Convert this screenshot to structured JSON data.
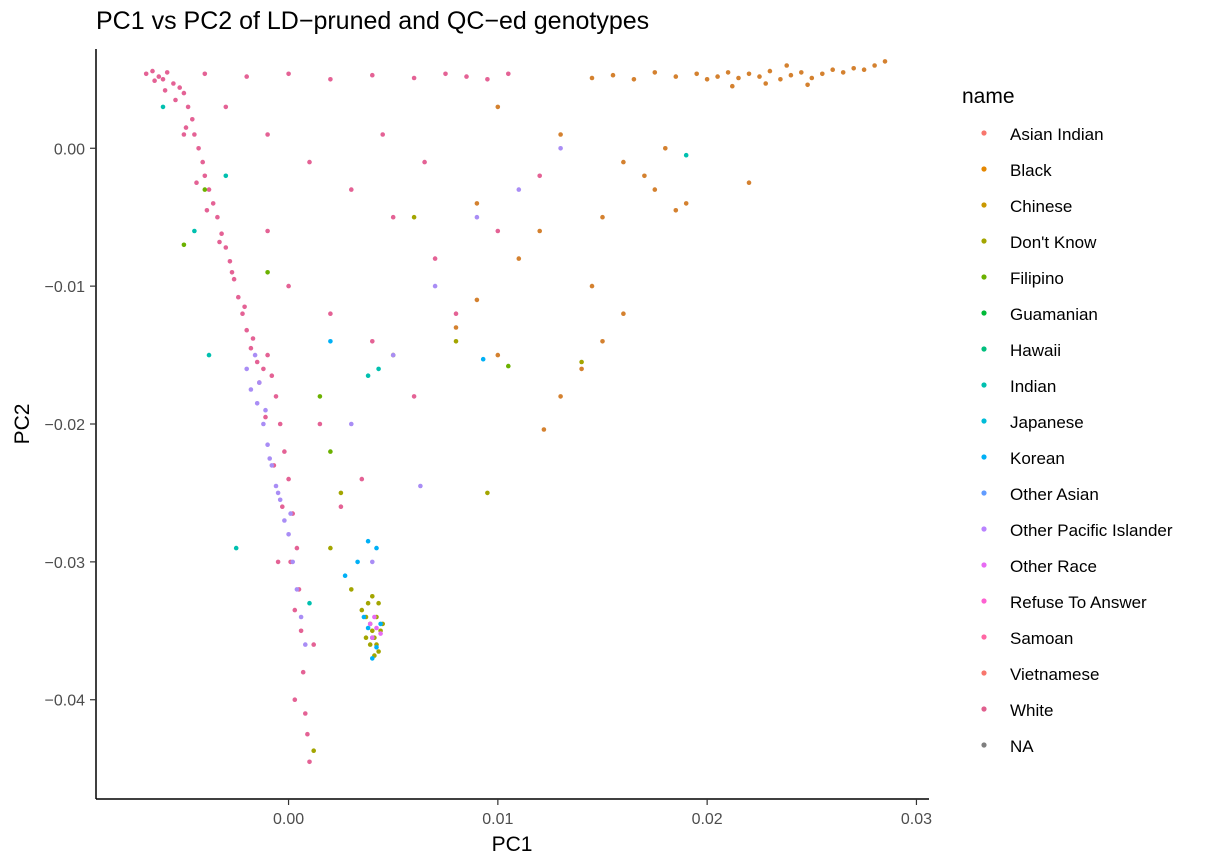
{
  "chart_data": {
    "type": "scatter",
    "title": "PC1 vs PC2 of LD−pruned and QC−ed genotypes",
    "xlabel": "PC1",
    "ylabel": "PC2",
    "xlim": [
      -0.0092,
      0.0306
    ],
    "ylim": [
      -0.0472,
      0.0072
    ],
    "x_ticks": [
      0.0,
      0.01,
      0.02,
      0.03
    ],
    "x_tick_labels": [
      "0.00",
      "0.01",
      "0.02",
      "0.03"
    ],
    "y_ticks": [
      0.0,
      -0.01,
      -0.02,
      -0.03,
      -0.04
    ],
    "y_tick_labels": [
      "0.00",
      "−0.01",
      "−0.02",
      "−0.03",
      "−0.04"
    ],
    "grid": false,
    "legend": {
      "title": "name",
      "placement": "right",
      "entries": [
        {
          "label": "Asian Indian",
          "color": "#F8766D"
        },
        {
          "label": "Black",
          "color": "#E58700"
        },
        {
          "label": "Chinese",
          "color": "#C99800"
        },
        {
          "label": "Don't Know",
          "color": "#A3A500"
        },
        {
          "label": "Filipino",
          "color": "#6BB100"
        },
        {
          "label": "Guamanian",
          "color": "#00BA38"
        },
        {
          "label": "Hawaii",
          "color": "#00BF7D"
        },
        {
          "label": "Indian",
          "color": "#00C0AF"
        },
        {
          "label": "Japanese",
          "color": "#00BCD8"
        },
        {
          "label": "Korean",
          "color": "#00B0F6"
        },
        {
          "label": "Other Asian",
          "color": "#619CFF"
        },
        {
          "label": "Other Pacific Islander",
          "color": "#B983FF"
        },
        {
          "label": "Other Race",
          "color": "#E76BF3"
        },
        {
          "label": "Refuse To Answer",
          "color": "#FD61D1"
        },
        {
          "label": "Samoan",
          "color": "#FF67A4"
        },
        {
          "label": "Vietnamese",
          "color": "#F8766D"
        },
        {
          "label": "White",
          "color": "#E05F8E"
        },
        {
          "label": "NA",
          "color": "#7F7F7F"
        }
      ]
    },
    "series": [
      {
        "name": "White",
        "color": "#E46295",
        "points": [
          [
            -0.0068,
            0.0054
          ],
          [
            -0.0065,
            0.0056
          ],
          [
            -0.0062,
            0.0052
          ],
          [
            -0.006,
            0.005
          ],
          [
            -0.0058,
            0.0055
          ],
          [
            -0.0055,
            0.0047
          ],
          [
            -0.0052,
            0.0044
          ],
          [
            -0.005,
            0.004
          ],
          [
            -0.0048,
            0.003
          ],
          [
            -0.0046,
            0.0021
          ],
          [
            -0.0045,
            0.001
          ],
          [
            -0.0043,
            0.0
          ],
          [
            -0.0041,
            -0.001
          ],
          [
            -0.004,
            -0.002
          ],
          [
            -0.0038,
            -0.003
          ],
          [
            -0.0036,
            -0.004
          ],
          [
            -0.0034,
            -0.005
          ],
          [
            -0.0032,
            -0.0062
          ],
          [
            -0.003,
            -0.0072
          ],
          [
            -0.0028,
            -0.0082
          ],
          [
            -0.0026,
            -0.0095
          ],
          [
            -0.0024,
            -0.0108
          ],
          [
            -0.0022,
            -0.012
          ],
          [
            -0.002,
            -0.0132
          ],
          [
            -0.0018,
            -0.0145
          ],
          [
            -0.0015,
            -0.0155
          ],
          [
            -0.0012,
            -0.016
          ],
          [
            -0.001,
            -0.015
          ],
          [
            -0.0008,
            -0.0165
          ],
          [
            -0.0006,
            -0.018
          ],
          [
            -0.0004,
            -0.02
          ],
          [
            -0.0002,
            -0.022
          ],
          [
            0.0,
            -0.024
          ],
          [
            0.0002,
            -0.0265
          ],
          [
            0.0004,
            -0.029
          ],
          [
            0.0005,
            -0.032
          ],
          [
            0.0006,
            -0.035
          ],
          [
            0.0007,
            -0.038
          ],
          [
            0.0008,
            -0.041
          ],
          [
            0.001,
            -0.0445
          ],
          [
            -0.004,
            0.0054
          ],
          [
            -0.002,
            0.0052
          ],
          [
            0.0,
            0.0054
          ],
          [
            0.002,
            0.005
          ],
          [
            0.004,
            0.0053
          ],
          [
            0.006,
            0.0051
          ],
          [
            0.0075,
            0.0054
          ],
          [
            0.0085,
            0.0052
          ],
          [
            0.0095,
            0.005
          ],
          [
            0.0105,
            0.0054
          ],
          [
            -0.003,
            0.003
          ],
          [
            -0.001,
            0.001
          ],
          [
            0.001,
            -0.001
          ],
          [
            0.003,
            -0.003
          ],
          [
            0.005,
            -0.005
          ],
          [
            0.007,
            -0.008
          ],
          [
            0.002,
            -0.012
          ],
          [
            0.004,
            -0.014
          ],
          [
            0.0,
            -0.01
          ],
          [
            -0.001,
            -0.006
          ],
          [
            0.0015,
            -0.02
          ],
          [
            0.0025,
            -0.026
          ],
          [
            0.0035,
            -0.024
          ],
          [
            0.006,
            -0.018
          ],
          [
            0.008,
            -0.012
          ],
          [
            0.01,
            -0.006
          ],
          [
            0.012,
            -0.002
          ],
          [
            0.0045,
            0.001
          ],
          [
            0.0065,
            -0.001
          ],
          [
            -0.005,
            0.001
          ],
          [
            -0.0064,
            0.0049
          ],
          [
            -0.0059,
            0.0042
          ],
          [
            -0.0054,
            0.0035
          ],
          [
            -0.0049,
            0.0015
          ],
          [
            -0.0044,
            -0.0025
          ],
          [
            -0.0039,
            -0.0045
          ],
          [
            -0.0033,
            -0.0068
          ],
          [
            -0.0027,
            -0.009
          ],
          [
            -0.0021,
            -0.0115
          ],
          [
            -0.0017,
            -0.0138
          ],
          [
            -0.0014,
            -0.017
          ],
          [
            -0.0011,
            -0.0195
          ],
          [
            -0.0007,
            -0.023
          ],
          [
            -0.0003,
            -0.026
          ],
          [
            0.0001,
            -0.03
          ],
          [
            0.0003,
            -0.0335
          ],
          [
            0.0009,
            -0.0425
          ],
          [
            0.0003,
            -0.04
          ],
          [
            -0.0005,
            -0.03
          ],
          [
            0.0012,
            -0.036
          ]
        ]
      },
      {
        "name": "Black",
        "color": "#D4812F",
        "points": [
          [
            0.02,
            0.005
          ],
          [
            0.0205,
            0.0052
          ],
          [
            0.021,
            0.0055
          ],
          [
            0.0215,
            0.0051
          ],
          [
            0.022,
            0.0054
          ],
          [
            0.0225,
            0.0052
          ],
          [
            0.023,
            0.0056
          ],
          [
            0.0235,
            0.005
          ],
          [
            0.024,
            0.0053
          ],
          [
            0.0245,
            0.0055
          ],
          [
            0.025,
            0.0051
          ],
          [
            0.0255,
            0.0054
          ],
          [
            0.026,
            0.0057
          ],
          [
            0.0265,
            0.0055
          ],
          [
            0.027,
            0.0058
          ],
          [
            0.0275,
            0.0057
          ],
          [
            0.028,
            0.006
          ],
          [
            0.0285,
            0.0063
          ],
          [
            0.0212,
            0.0045
          ],
          [
            0.0228,
            0.0047
          ],
          [
            0.0238,
            0.006
          ],
          [
            0.0248,
            0.0046
          ],
          [
            0.0195,
            0.0054
          ],
          [
            0.0185,
            0.0052
          ],
          [
            0.0175,
            0.0055
          ],
          [
            0.0165,
            0.005
          ],
          [
            0.0155,
            0.0053
          ],
          [
            0.0145,
            0.0051
          ],
          [
            0.01,
            0.003
          ],
          [
            0.013,
            0.001
          ],
          [
            0.016,
            -0.001
          ],
          [
            0.018,
            0.0
          ],
          [
            0.019,
            -0.004
          ],
          [
            0.012,
            -0.006
          ],
          [
            0.011,
            -0.008
          ],
          [
            0.015,
            -0.005
          ],
          [
            0.017,
            -0.002
          ],
          [
            0.016,
            -0.012
          ],
          [
            0.015,
            -0.014
          ],
          [
            0.014,
            -0.016
          ],
          [
            0.013,
            -0.018
          ],
          [
            0.0122,
            -0.0204
          ],
          [
            0.01,
            -0.015
          ],
          [
            0.009,
            -0.011
          ],
          [
            0.008,
            -0.013
          ],
          [
            0.009,
            -0.004
          ],
          [
            0.022,
            -0.0025
          ],
          [
            0.0185,
            -0.0045
          ],
          [
            0.0175,
            -0.003
          ],
          [
            0.0145,
            -0.01
          ]
        ]
      },
      {
        "name": "Don't Know",
        "color": "#A3A500",
        "points": [
          [
            0.0035,
            -0.0335
          ],
          [
            0.0037,
            -0.034
          ],
          [
            0.0039,
            -0.0345
          ],
          [
            0.004,
            -0.035
          ],
          [
            0.0041,
            -0.0355
          ],
          [
            0.0042,
            -0.036
          ],
          [
            0.0043,
            -0.0365
          ],
          [
            0.0044,
            -0.035
          ],
          [
            0.0038,
            -0.033
          ],
          [
            0.004,
            -0.0325
          ],
          [
            0.0042,
            -0.034
          ],
          [
            0.0043,
            -0.033
          ],
          [
            0.0039,
            -0.036
          ],
          [
            0.0041,
            -0.0368
          ],
          [
            0.0037,
            -0.0355
          ],
          [
            0.0045,
            -0.0345
          ],
          [
            0.003,
            -0.032
          ],
          [
            0.002,
            -0.029
          ],
          [
            0.0012,
            -0.0437
          ],
          [
            0.0025,
            -0.025
          ],
          [
            0.005,
            -0.015
          ],
          [
            0.008,
            -0.014
          ],
          [
            0.0095,
            -0.025
          ],
          [
            0.014,
            -0.0155
          ],
          [
            0.006,
            -0.005
          ]
        ]
      },
      {
        "name": "Other Race",
        "color": "#A98DF5",
        "points": [
          [
            -0.002,
            -0.016
          ],
          [
            -0.0018,
            -0.0175
          ],
          [
            -0.0015,
            -0.0185
          ],
          [
            -0.0012,
            -0.02
          ],
          [
            -0.001,
            -0.0215
          ],
          [
            -0.0008,
            -0.023
          ],
          [
            -0.0006,
            -0.0245
          ],
          [
            -0.0004,
            -0.0255
          ],
          [
            -0.0002,
            -0.027
          ],
          [
            0.0,
            -0.028
          ],
          [
            0.0002,
            -0.03
          ],
          [
            0.0004,
            -0.032
          ],
          [
            0.0006,
            -0.034
          ],
          [
            0.0008,
            -0.036
          ],
          [
            -0.0016,
            -0.015
          ],
          [
            -0.0014,
            -0.017
          ],
          [
            -0.0011,
            -0.019
          ],
          [
            -0.0009,
            -0.0225
          ],
          [
            -0.0005,
            -0.025
          ],
          [
            0.0001,
            -0.0265
          ],
          [
            0.003,
            -0.02
          ],
          [
            0.005,
            -0.015
          ],
          [
            0.007,
            -0.01
          ],
          [
            0.009,
            -0.005
          ],
          [
            0.004,
            -0.03
          ],
          [
            0.0063,
            -0.0245
          ],
          [
            0.011,
            -0.003
          ],
          [
            0.013,
            0.0
          ]
        ]
      },
      {
        "name": "Korean",
        "color": "#00B0F6",
        "points": [
          [
            0.0036,
            -0.034
          ],
          [
            0.0038,
            -0.0348
          ],
          [
            0.004,
            -0.0355
          ],
          [
            0.0042,
            -0.0362
          ],
          [
            0.0044,
            -0.0345
          ],
          [
            0.004,
            -0.037
          ],
          [
            0.0038,
            -0.0285
          ],
          [
            0.0042,
            -0.029
          ],
          [
            0.0033,
            -0.03
          ],
          [
            0.0027,
            -0.031
          ],
          [
            0.0093,
            -0.0153
          ],
          [
            0.002,
            -0.014
          ]
        ]
      },
      {
        "name": "Indian",
        "color": "#00C0AF",
        "points": [
          [
            -0.0045,
            -0.006
          ],
          [
            -0.003,
            -0.002
          ],
          [
            -0.006,
            0.003
          ],
          [
            -0.0038,
            -0.015
          ],
          [
            0.0043,
            -0.016
          ],
          [
            0.019,
            -0.0005
          ],
          [
            -0.0025,
            -0.029
          ],
          [
            0.001,
            -0.033
          ],
          [
            0.0038,
            -0.0165
          ]
        ]
      },
      {
        "name": "Filipino",
        "color": "#6BB100",
        "points": [
          [
            -0.004,
            -0.003
          ],
          [
            -0.001,
            -0.009
          ],
          [
            0.002,
            -0.022
          ],
          [
            0.0105,
            -0.0158
          ],
          [
            -0.005,
            -0.007
          ],
          [
            0.0015,
            -0.018
          ]
        ]
      },
      {
        "name": "Refuse To Answer",
        "color": "#E76BF3",
        "points": [
          [
            0.004,
            -0.0355
          ],
          [
            0.0042,
            -0.0348
          ],
          [
            0.0044,
            -0.0352
          ],
          [
            0.0039,
            -0.0345
          ],
          [
            0.0041,
            -0.034
          ]
        ]
      }
    ]
  }
}
